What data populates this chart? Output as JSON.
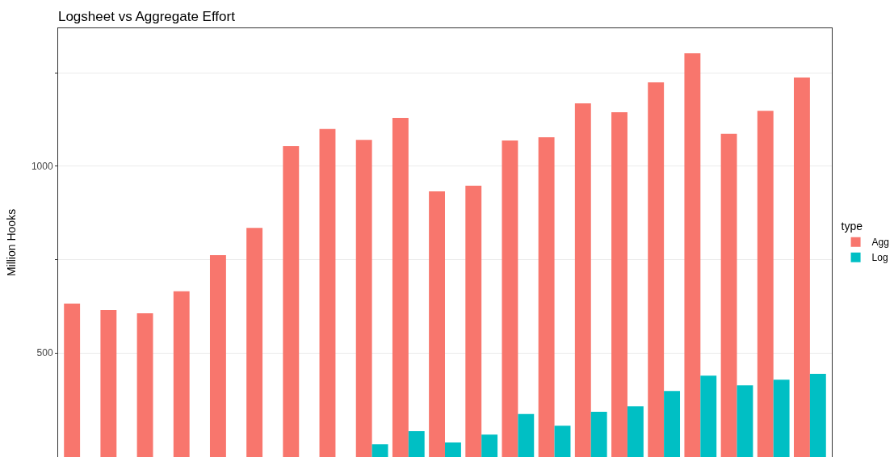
{
  "chart_data": {
    "type": "bar",
    "title": "Logsheet vs Aggregate Effort",
    "ylabel": "Million Hooks",
    "legend_title": "type",
    "categories": [
      null,
      null,
      null,
      null,
      null,
      null,
      null,
      null,
      null,
      null,
      null,
      null,
      null,
      null,
      null,
      null,
      null,
      null,
      null,
      null,
      null
    ],
    "series": [
      {
        "name": "Agg",
        "color": "#f8766d",
        "values": [
          632,
          615,
          606,
          665,
          762,
          835,
          1054,
          1100,
          1071,
          1130,
          933,
          948,
          1069,
          1078,
          1169,
          1145,
          1225,
          1303,
          1087,
          1149,
          1238
        ]
      },
      {
        "name": "Log",
        "color": "#00bfc4",
        "values": [
          null,
          null,
          null,
          null,
          null,
          null,
          null,
          null,
          255,
          290,
          260,
          281,
          336,
          305,
          342,
          357,
          398,
          439,
          413,
          428,
          444
        ]
      }
    ],
    "ylim": [
      221,
      1370
    ],
    "yticks": [
      500,
      {
        "value": 750,
        "label": null
      },
      1000,
      {
        "value": 1250,
        "label": null
      }
    ],
    "grid": "y",
    "legend": "right",
    "tick_labels": "y"
  }
}
